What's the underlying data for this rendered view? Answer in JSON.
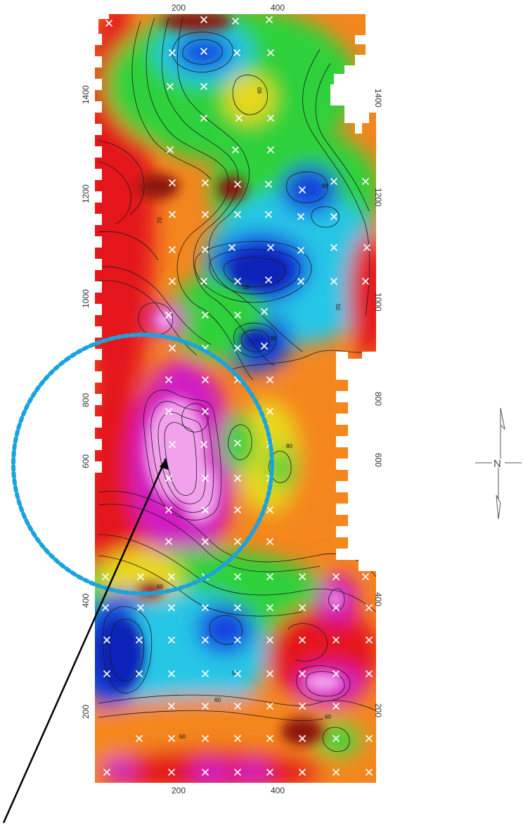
{
  "map": {
    "type": "contour_map",
    "x_axis": {
      "ticks": [
        "200",
        "400"
      ],
      "range": [
        50,
        580
      ]
    },
    "y_axis": {
      "ticks": [
        "200",
        "400",
        "600",
        "800",
        "1000",
        "1200",
        "1400"
      ],
      "range": [
        10,
        1570
      ]
    },
    "contour_labels": [
      "60",
      "60",
      "70",
      "60",
      "50",
      "90",
      "80",
      "60",
      "50",
      "60",
      "60",
      "60"
    ],
    "palette": {
      "red": "#e4141c",
      "orange": "#f4861e",
      "yellow": "#e8d81a",
      "green": "#2fd13a",
      "cyan": "#25c6e6",
      "blue": "#1242e0",
      "magenta": "#d21fc3",
      "pink": "#f2a2ec",
      "darkred": "#8e1410"
    }
  },
  "annotation": {
    "circle_color": "#1ba3e0",
    "arrow_color": "#000000"
  },
  "north_arrow": {
    "icon": "north-arrow-icon",
    "letter": "N"
  }
}
